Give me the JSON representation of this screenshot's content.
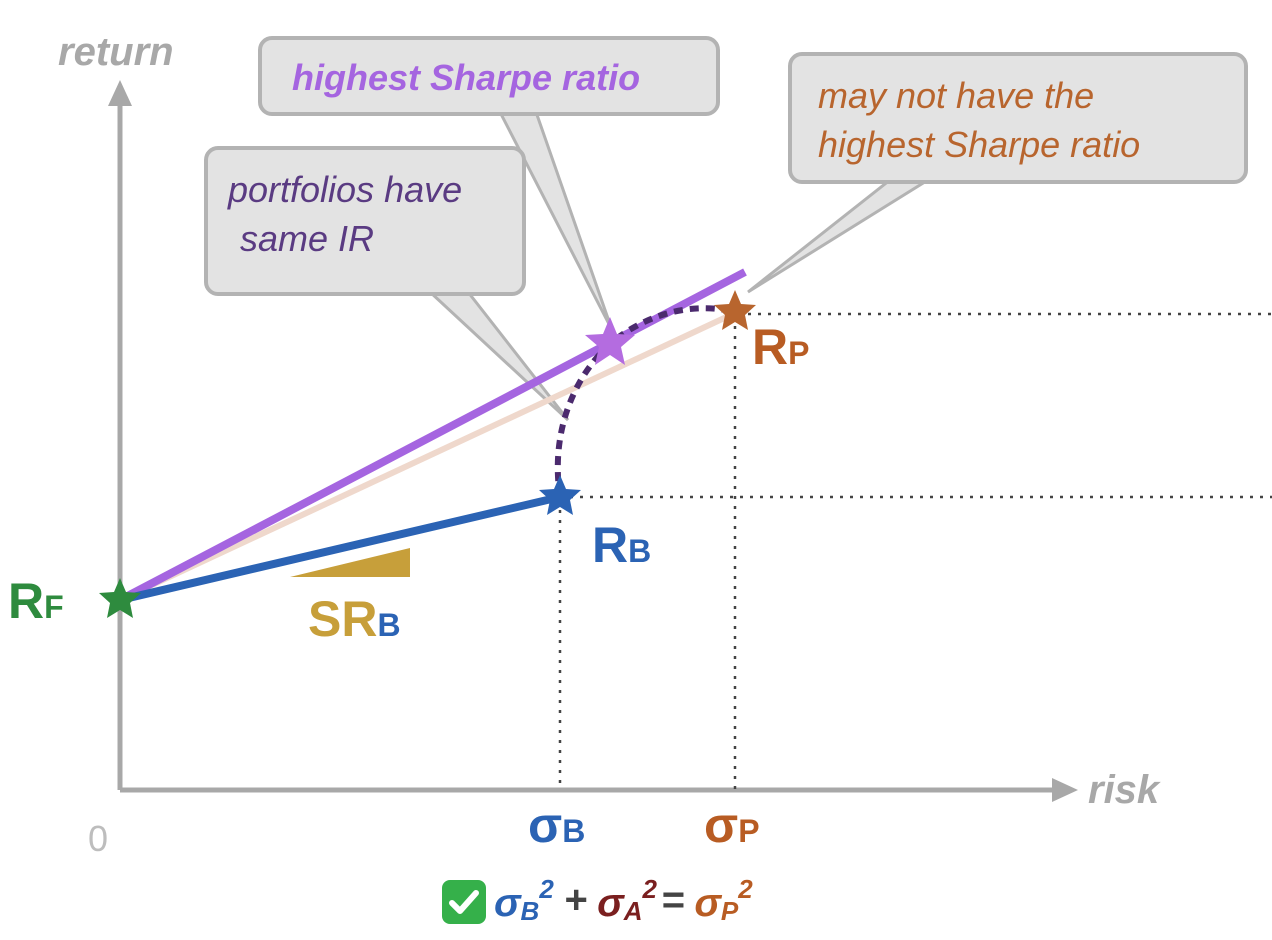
{
  "axes": {
    "y_label": "return",
    "x_label": "risk",
    "origin": "0"
  },
  "callouts": {
    "highest_sharpe": "highest Sharpe ratio",
    "same_ir_line1": "portfolios have",
    "same_ir_line2": "same IR",
    "may_not_line1": "may not have the",
    "may_not_line2": "highest Sharpe ratio"
  },
  "labels": {
    "rf_main": "R",
    "rf_sub": "F",
    "rb_main": "R",
    "rb_sub": "B",
    "rp_main": "R",
    "rp_sub": "P",
    "srb_main": "SR",
    "srb_sub": "B",
    "sigma_b_main": "σ",
    "sigma_b_sub": "B",
    "sigma_p_main": "σ",
    "sigma_p_sub": "P"
  },
  "formula": {
    "t1": "σ",
    "t1_sub": "B",
    "t1_sup": "2",
    "plus": "+",
    "t2": "σ",
    "t2_sub": "A",
    "t2_sup": "2",
    "eq": "=",
    "t3": "σ",
    "t3_sub": "P",
    "t3_sup": "2"
  },
  "colors": {
    "axis": "#a8a8a8",
    "benchmark_line": "#2b63b4",
    "max_sharpe_line": "#a565e0",
    "portfolio_line": "#efd8cc",
    "ir_curve": "#4b2a6e",
    "rf_star": "#2e8b3e",
    "rb_star": "#2b63b4",
    "max_sharpe_star": "#b46ce0",
    "rp_star": "#b8652e",
    "srb_wedge": "#c79f3a"
  },
  "icons": {
    "check": "check-mark-icon"
  }
}
